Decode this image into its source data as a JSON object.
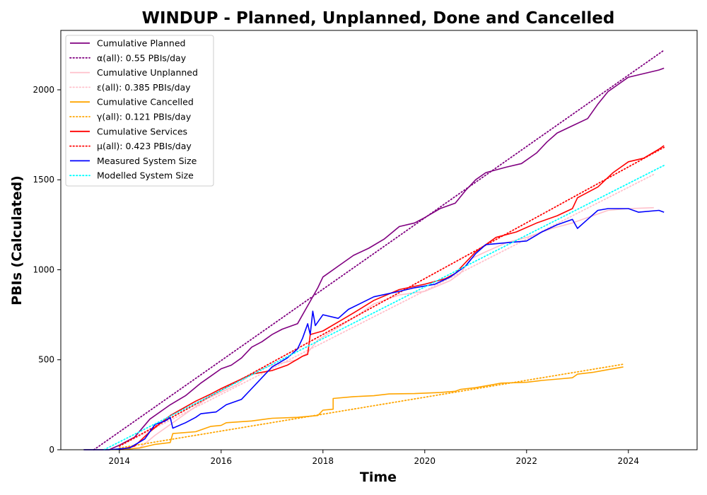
{
  "chart_data": {
    "type": "line",
    "title": "WINDUP - Planned, Unplanned, Done  and Cancelled",
    "xlabel": "Time",
    "ylabel": "PBIs (Calculated)",
    "xlim": [
      2012.85,
      2025.35
    ],
    "ylim": [
      0,
      2330
    ],
    "x_ticks": [
      2014,
      2016,
      2018,
      2020,
      2022,
      2024
    ],
    "y_ticks": [
      0,
      500,
      1000,
      1500,
      2000
    ],
    "grid": false,
    "legend_position": "top-left",
    "series": [
      {
        "name": "Cumulative Planned",
        "color": "#800080",
        "style": "solid",
        "points": [
          [
            2013.3,
            0
          ],
          [
            2013.8,
            0
          ],
          [
            2014.0,
            25
          ],
          [
            2014.3,
            70
          ],
          [
            2014.6,
            170
          ],
          [
            2015.0,
            250
          ],
          [
            2015.3,
            300
          ],
          [
            2015.6,
            370
          ],
          [
            2015.8,
            410
          ],
          [
            2016.0,
            450
          ],
          [
            2016.2,
            470
          ],
          [
            2016.4,
            510
          ],
          [
            2016.6,
            570
          ],
          [
            2016.8,
            600
          ],
          [
            2017.0,
            640
          ],
          [
            2017.2,
            670
          ],
          [
            2017.5,
            700
          ],
          [
            2017.7,
            800
          ],
          [
            2017.9,
            900
          ],
          [
            2018.0,
            960
          ],
          [
            2018.3,
            1020
          ],
          [
            2018.6,
            1080
          ],
          [
            2018.9,
            1120
          ],
          [
            2019.2,
            1170
          ],
          [
            2019.5,
            1240
          ],
          [
            2019.8,
            1260
          ],
          [
            2020.0,
            1290
          ],
          [
            2020.3,
            1340
          ],
          [
            2020.6,
            1370
          ],
          [
            2020.8,
            1440
          ],
          [
            2021.0,
            1500
          ],
          [
            2021.2,
            1540
          ],
          [
            2021.6,
            1570
          ],
          [
            2021.9,
            1590
          ],
          [
            2022.2,
            1650
          ],
          [
            2022.4,
            1710
          ],
          [
            2022.6,
            1760
          ],
          [
            2022.9,
            1800
          ],
          [
            2023.2,
            1840
          ],
          [
            2023.4,
            1920
          ],
          [
            2023.6,
            1990
          ],
          [
            2023.8,
            2030
          ],
          [
            2024.0,
            2070
          ],
          [
            2024.3,
            2090
          ],
          [
            2024.6,
            2110
          ],
          [
            2024.7,
            2120
          ]
        ]
      },
      {
        "name": "α(all): 0.55 PBIs/day",
        "color": "#800080",
        "style": "dotted",
        "points": [
          [
            2013.5,
            0
          ],
          [
            2024.7,
            2220
          ]
        ]
      },
      {
        "name": "Cumulative Unplanned",
        "color": "#ffc0cb",
        "style": "solid",
        "points": [
          [
            2014.0,
            0
          ],
          [
            2014.4,
            10
          ],
          [
            2014.7,
            80
          ],
          [
            2015.0,
            140
          ],
          [
            2015.3,
            200
          ],
          [
            2015.7,
            280
          ],
          [
            2016.0,
            320
          ],
          [
            2016.3,
            360
          ],
          [
            2016.7,
            440
          ],
          [
            2017.0,
            470
          ],
          [
            2017.5,
            500
          ],
          [
            2017.7,
            540
          ],
          [
            2017.9,
            610
          ],
          [
            2018.3,
            680
          ],
          [
            2018.7,
            750
          ],
          [
            2019.0,
            810
          ],
          [
            2019.5,
            860
          ],
          [
            2020.0,
            880
          ],
          [
            2020.5,
            940
          ],
          [
            2020.7,
            980
          ],
          [
            2020.9,
            1060
          ],
          [
            2021.2,
            1100
          ],
          [
            2021.6,
            1150
          ],
          [
            2022.0,
            1180
          ],
          [
            2022.5,
            1230
          ],
          [
            2022.9,
            1260
          ],
          [
            2023.3,
            1300
          ],
          [
            2023.6,
            1330
          ],
          [
            2024.0,
            1340
          ],
          [
            2024.5,
            1345
          ]
        ]
      },
      {
        "name": "ε(all): 0.385 PBIs/day",
        "color": "#ffc0cb",
        "style": "dotted",
        "points": [
          [
            2014.0,
            20
          ],
          [
            2024.5,
            1530
          ]
        ]
      },
      {
        "name": "Cumulative Cancelled",
        "color": "#ffa500",
        "style": "solid",
        "points": [
          [
            2014.0,
            0
          ],
          [
            2014.4,
            10
          ],
          [
            2014.7,
            30
          ],
          [
            2015.0,
            40
          ],
          [
            2015.05,
            90
          ],
          [
            2015.5,
            100
          ],
          [
            2015.8,
            130
          ],
          [
            2016.0,
            135
          ],
          [
            2016.1,
            150
          ],
          [
            2016.6,
            160
          ],
          [
            2017.0,
            175
          ],
          [
            2017.5,
            180
          ],
          [
            2017.9,
            190
          ],
          [
            2018.0,
            220
          ],
          [
            2018.2,
            225
          ],
          [
            2018.2,
            285
          ],
          [
            2018.6,
            295
          ],
          [
            2019.0,
            300
          ],
          [
            2019.3,
            310
          ],
          [
            2019.8,
            312
          ],
          [
            2020.3,
            318
          ],
          [
            2020.6,
            325
          ],
          [
            2020.7,
            335
          ],
          [
            2021.0,
            345
          ],
          [
            2021.3,
            360
          ],
          [
            2021.5,
            370
          ],
          [
            2022.0,
            375
          ],
          [
            2022.3,
            385
          ],
          [
            2022.7,
            395
          ],
          [
            2022.9,
            400
          ],
          [
            2023.0,
            420
          ],
          [
            2023.3,
            430
          ],
          [
            2023.6,
            445
          ],
          [
            2023.9,
            460
          ]
        ]
      },
      {
        "name": "γ(all): 0.121 PBIs/day",
        "color": "#ffa500",
        "style": "dotted",
        "points": [
          [
            2014.0,
            10
          ],
          [
            2023.9,
            475
          ]
        ]
      },
      {
        "name": "Cumulative Services",
        "color": "#ff0000",
        "style": "solid",
        "points": [
          [
            2014.0,
            0
          ],
          [
            2014.3,
            20
          ],
          [
            2014.6,
            100
          ],
          [
            2015.0,
            190
          ],
          [
            2015.5,
            270
          ],
          [
            2015.8,
            310
          ],
          [
            2016.0,
            340
          ],
          [
            2016.3,
            380
          ],
          [
            2016.6,
            420
          ],
          [
            2017.0,
            440
          ],
          [
            2017.3,
            470
          ],
          [
            2017.6,
            520
          ],
          [
            2017.7,
            530
          ],
          [
            2017.75,
            640
          ],
          [
            2018.0,
            660
          ],
          [
            2018.3,
            710
          ],
          [
            2018.6,
            760
          ],
          [
            2019.0,
            830
          ],
          [
            2019.5,
            890
          ],
          [
            2020.0,
            920
          ],
          [
            2020.4,
            950
          ],
          [
            2020.6,
            980
          ],
          [
            2020.8,
            1040
          ],
          [
            2021.0,
            1100
          ],
          [
            2021.4,
            1180
          ],
          [
            2021.8,
            1210
          ],
          [
            2022.2,
            1260
          ],
          [
            2022.6,
            1300
          ],
          [
            2022.9,
            1340
          ],
          [
            2023.0,
            1400
          ],
          [
            2023.4,
            1460
          ],
          [
            2023.7,
            1540
          ],
          [
            2024.0,
            1600
          ],
          [
            2024.3,
            1620
          ],
          [
            2024.6,
            1670
          ],
          [
            2024.7,
            1690
          ]
        ]
      },
      {
        "name": "μ(all): 0.423 PBIs/day",
        "color": "#ff0000",
        "style": "dotted",
        "points": [
          [
            2014.0,
            20
          ],
          [
            2024.7,
            1680
          ]
        ]
      },
      {
        "name": "Measured System Size",
        "color": "#0000ff",
        "style": "solid",
        "points": [
          [
            2013.3,
            0
          ],
          [
            2013.8,
            0
          ],
          [
            2014.2,
            10
          ],
          [
            2014.5,
            60
          ],
          [
            2014.7,
            140
          ],
          [
            2014.9,
            160
          ],
          [
            2015.0,
            180
          ],
          [
            2015.05,
            120
          ],
          [
            2015.3,
            150
          ],
          [
            2015.5,
            180
          ],
          [
            2015.6,
            200
          ],
          [
            2015.9,
            210
          ],
          [
            2016.1,
            250
          ],
          [
            2016.4,
            280
          ],
          [
            2016.6,
            340
          ],
          [
            2016.8,
            400
          ],
          [
            2017.0,
            460
          ],
          [
            2017.3,
            510
          ],
          [
            2017.5,
            560
          ],
          [
            2017.6,
            620
          ],
          [
            2017.7,
            700
          ],
          [
            2017.75,
            640
          ],
          [
            2017.8,
            770
          ],
          [
            2017.85,
            690
          ],
          [
            2018.0,
            750
          ],
          [
            2018.3,
            730
          ],
          [
            2018.5,
            780
          ],
          [
            2019.0,
            850
          ],
          [
            2019.5,
            880
          ],
          [
            2019.8,
            900
          ],
          [
            2020.2,
            920
          ],
          [
            2020.5,
            960
          ],
          [
            2020.8,
            1020
          ],
          [
            2021.0,
            1090
          ],
          [
            2021.2,
            1140
          ],
          [
            2021.6,
            1150
          ],
          [
            2022.0,
            1160
          ],
          [
            2022.3,
            1210
          ],
          [
            2022.6,
            1250
          ],
          [
            2022.9,
            1280
          ],
          [
            2023.0,
            1230
          ],
          [
            2023.2,
            1280
          ],
          [
            2023.4,
            1330
          ],
          [
            2023.6,
            1340
          ],
          [
            2024.0,
            1340
          ],
          [
            2024.2,
            1320
          ],
          [
            2024.6,
            1330
          ],
          [
            2024.7,
            1320
          ]
        ]
      },
      {
        "name": "Modelled System Size",
        "color": "#00ffff",
        "style": "dotted",
        "points": [
          [
            2013.7,
            0
          ],
          [
            2024.7,
            1580
          ]
        ]
      }
    ]
  }
}
